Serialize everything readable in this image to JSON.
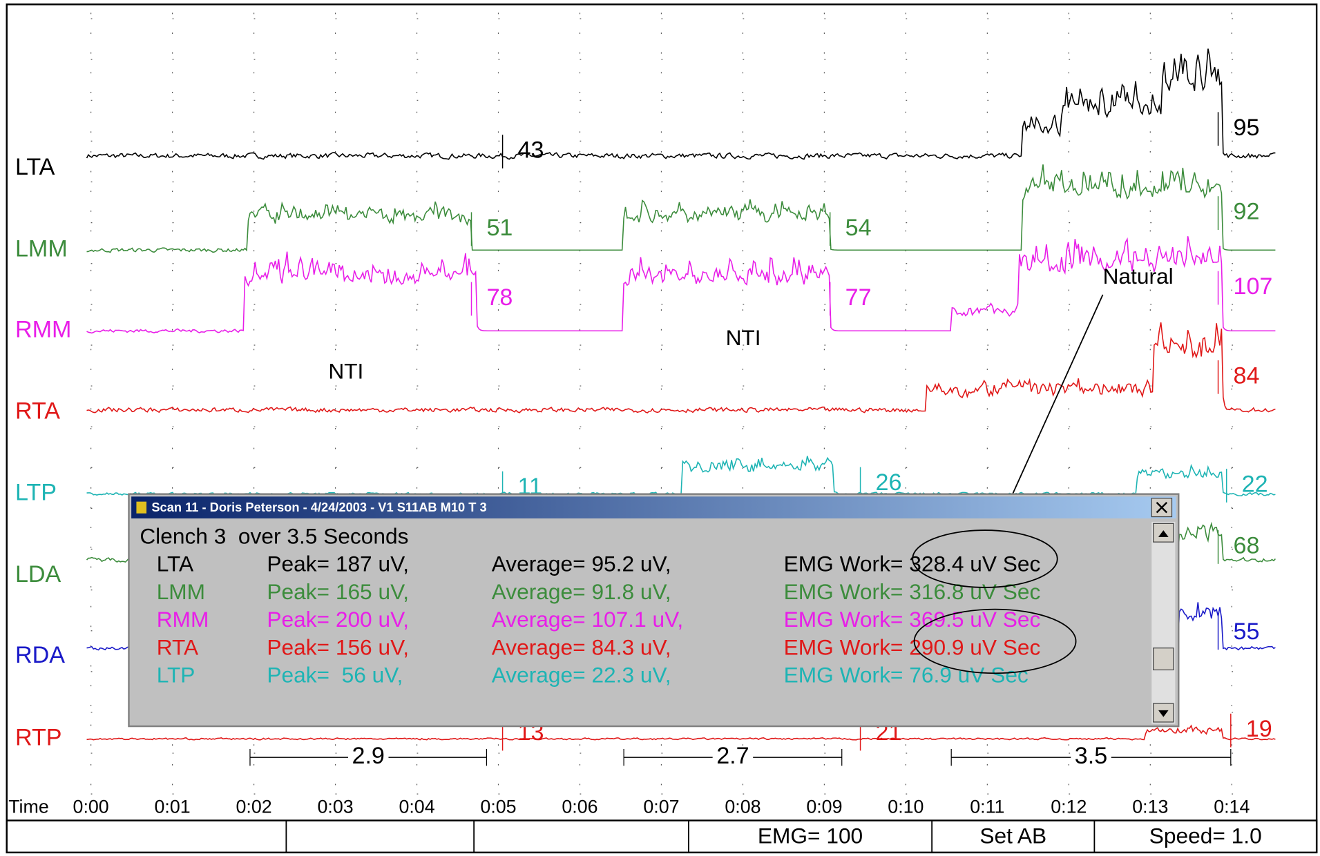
{
  "channels": [
    {
      "name": "LTA",
      "color": "#000000"
    },
    {
      "name": "LMM",
      "color": "#3c8c3c"
    },
    {
      "name": "RMM",
      "color": "#e81ee8"
    },
    {
      "name": "RTA",
      "color": "#e01818"
    },
    {
      "name": "LTP",
      "color": "#1eb4b4"
    },
    {
      "name": "LDA",
      "color": "#3c8c3c"
    },
    {
      "name": "RDA",
      "color": "#1a1ac8"
    },
    {
      "name": "RTP",
      "color": "#e01818"
    }
  ],
  "measurements": [
    {
      "value": 43,
      "color": "#000000"
    },
    {
      "value": 95,
      "color": "#000000"
    },
    {
      "value": 51,
      "color": "#3c8c3c"
    },
    {
      "value": 54,
      "color": "#3c8c3c"
    },
    {
      "value": 92,
      "color": "#3c8c3c"
    },
    {
      "value": 78,
      "color": "#e81ee8"
    },
    {
      "value": 77,
      "color": "#e81ee8"
    },
    {
      "value": 107,
      "color": "#e81ee8"
    },
    {
      "value": 84,
      "color": "#e01818"
    },
    {
      "value": 11,
      "color": "#1eb4b4"
    },
    {
      "value": 26,
      "color": "#1eb4b4"
    },
    {
      "value": 22,
      "color": "#1eb4b4"
    },
    {
      "value": 68,
      "color": "#3c8c3c"
    },
    {
      "value": 55,
      "color": "#1a1ac8"
    },
    {
      "value": 13,
      "color": "#e01818"
    },
    {
      "value": 21,
      "color": "#e01818"
    },
    {
      "value": 19,
      "color": "#e01818"
    }
  ],
  "annotations": [
    "NTI",
    "NTI",
    "Natural"
  ],
  "intervals": [
    2.9,
    2.7,
    3.5
  ],
  "time_axis": {
    "label": "Time",
    "ticks": [
      "0:00",
      "0:01",
      "0:02",
      "0:03",
      "0:04",
      "0:05",
      "0:06",
      "0:07",
      "0:08",
      "0:09",
      "0:10",
      "0:11",
      "0:12",
      "0:13",
      "0:14"
    ]
  },
  "dialog": {
    "title": "Scan 11 - Doris Peterson - 4/24/2003 - V1 S11AB M10 T 3",
    "heading": "Clench 3  over 3.5 Seconds",
    "rows": [
      {
        "channel": "LTA",
        "color": "#000000",
        "peak": "Peak= 187 uV,",
        "average": "Average= 95.2 uV,",
        "work": "EMG Work= 328.4 uV Sec"
      },
      {
        "channel": "LMM",
        "color": "#3c8c3c",
        "peak": "Peak= 165 uV,",
        "average": "Average= 91.8 uV,",
        "work": "EMG Work= 316.8 uV Sec"
      },
      {
        "channel": "RMM",
        "color": "#e81ee8",
        "peak": "Peak= 200 uV,",
        "average": "Average= 107.1 uV,",
        "work": "EMG Work= 369.5 uV Sec"
      },
      {
        "channel": "RTA",
        "color": "#e01818",
        "peak": "Peak= 156 uV,",
        "average": "Average= 84.3 uV,",
        "work": "EMG Work= 290.9 uV Sec"
      },
      {
        "channel": "LTP",
        "color": "#1eb4b4",
        "peak": "Peak=  56 uV,",
        "average": "Average= 22.3 uV,",
        "work": "EMG Work= 76.9 uV Sec"
      }
    ]
  },
  "status_bar": [
    "EMG= 100",
    "Set AB",
    "Speed= 1.0"
  ]
}
